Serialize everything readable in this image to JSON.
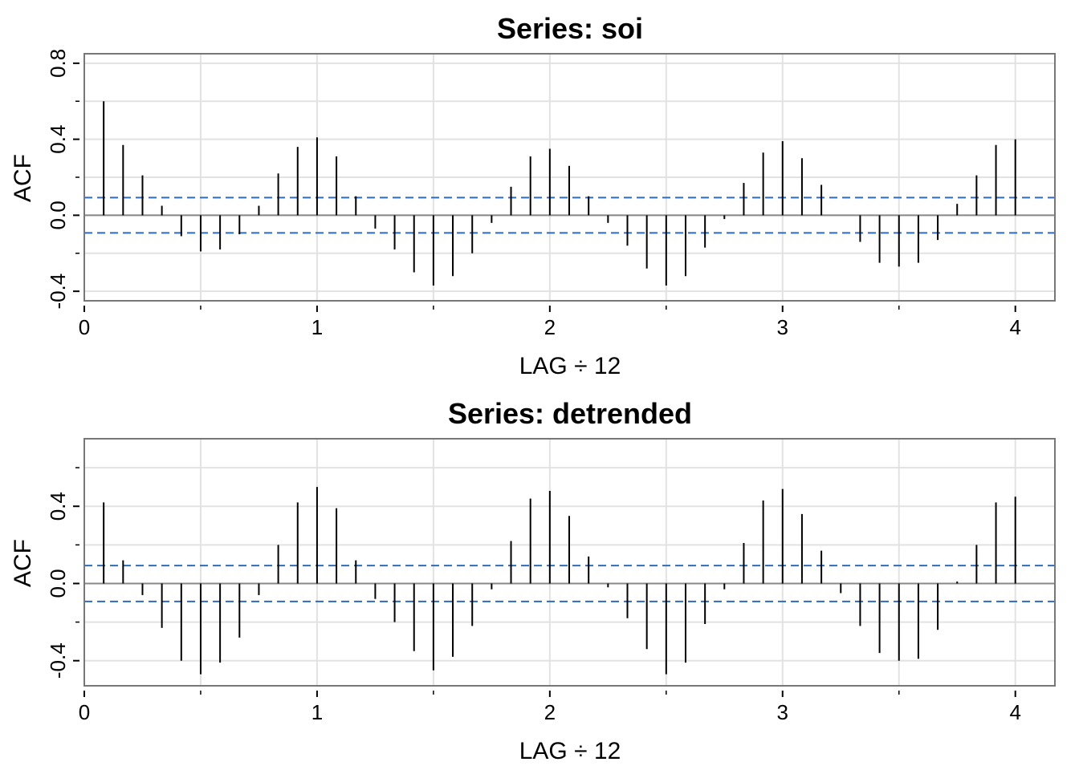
{
  "chart_data": [
    {
      "type": "bar",
      "title": "Series:  soi",
      "xlabel": "LAG ÷ 12",
      "ylabel": "ACF",
      "xlim": [
        0,
        4.17
      ],
      "ylim": [
        -0.45,
        0.85
      ],
      "x_ticks": [
        0,
        1,
        2,
        3,
        4
      ],
      "x_tick_labels": [
        "0",
        "1",
        "2",
        "3",
        "4"
      ],
      "y_ticks": [
        -0.4,
        0.0,
        0.4,
        0.8
      ],
      "y_tick_labels": [
        "-0.4",
        "0.0",
        "0.4",
        "0.8"
      ],
      "y_minor_ticks": [
        -0.2,
        0.2,
        0.6
      ],
      "grid": true,
      "confidence_band": 0.093,
      "colors": {
        "bars": "#000000",
        "confidence": "#2f6bc4",
        "grid": "#e2e2e2",
        "zero": "#888888"
      },
      "lags": [
        0.0833,
        0.1667,
        0.25,
        0.3333,
        0.4167,
        0.5,
        0.5833,
        0.6667,
        0.75,
        0.8333,
        0.9167,
        1.0,
        1.0833,
        1.1667,
        1.25,
        1.3333,
        1.4167,
        1.5,
        1.5833,
        1.6667,
        1.75,
        1.8333,
        1.9167,
        2.0,
        2.0833,
        2.1667,
        2.25,
        2.3333,
        2.4167,
        2.5,
        2.5833,
        2.6667,
        2.75,
        2.8333,
        2.9167,
        3.0,
        3.0833,
        3.1667,
        3.25,
        3.3333,
        3.4167,
        3.5,
        3.5833,
        3.6667,
        3.75,
        3.8333,
        3.9167,
        4.0
      ],
      "values": [
        0.6,
        0.37,
        0.21,
        0.05,
        -0.11,
        -0.19,
        -0.18,
        -0.1,
        0.05,
        0.22,
        0.36,
        0.41,
        0.31,
        0.1,
        -0.07,
        -0.18,
        -0.3,
        -0.37,
        -0.32,
        -0.2,
        -0.04,
        0.15,
        0.31,
        0.35,
        0.26,
        0.1,
        -0.04,
        -0.16,
        -0.28,
        -0.37,
        -0.32,
        -0.17,
        -0.02,
        0.17,
        0.33,
        0.39,
        0.3,
        0.16,
        0.0,
        -0.14,
        -0.25,
        -0.27,
        -0.25,
        -0.13,
        0.06,
        0.21,
        0.37,
        0.4
      ]
    },
    {
      "type": "bar",
      "title": "Series:  detrended",
      "xlabel": "LAG ÷ 12",
      "ylabel": "ACF",
      "xlim": [
        0,
        4.17
      ],
      "ylim": [
        -0.53,
        0.75
      ],
      "x_ticks": [
        0,
        1,
        2,
        3,
        4
      ],
      "x_tick_labels": [
        "0",
        "1",
        "2",
        "3",
        "4"
      ],
      "y_ticks": [
        -0.4,
        0.0,
        0.4
      ],
      "y_tick_labels": [
        "-0.4",
        "0.0",
        "0.4"
      ],
      "y_minor_ticks": [
        -0.2,
        0.2,
        0.6
      ],
      "grid": true,
      "confidence_band": 0.093,
      "colors": {
        "bars": "#000000",
        "confidence": "#2f6bc4",
        "grid": "#e2e2e2",
        "zero": "#888888"
      },
      "lags": [
        0.0833,
        0.1667,
        0.25,
        0.3333,
        0.4167,
        0.5,
        0.5833,
        0.6667,
        0.75,
        0.8333,
        0.9167,
        1.0,
        1.0833,
        1.1667,
        1.25,
        1.3333,
        1.4167,
        1.5,
        1.5833,
        1.6667,
        1.75,
        1.8333,
        1.9167,
        2.0,
        2.0833,
        2.1667,
        2.25,
        2.3333,
        2.4167,
        2.5,
        2.5833,
        2.6667,
        2.75,
        2.8333,
        2.9167,
        3.0,
        3.0833,
        3.1667,
        3.25,
        3.3333,
        3.4167,
        3.5,
        3.5833,
        3.6667,
        3.75,
        3.8333,
        3.9167,
        4.0
      ],
      "values": [
        0.42,
        0.12,
        -0.06,
        -0.23,
        -0.4,
        -0.47,
        -0.41,
        -0.28,
        -0.06,
        0.2,
        0.42,
        0.5,
        0.39,
        0.12,
        -0.08,
        -0.2,
        -0.35,
        -0.45,
        -0.38,
        -0.22,
        -0.03,
        0.22,
        0.44,
        0.48,
        0.35,
        0.14,
        -0.02,
        -0.18,
        -0.34,
        -0.47,
        -0.41,
        -0.21,
        -0.03,
        0.21,
        0.43,
        0.49,
        0.36,
        0.17,
        -0.05,
        -0.22,
        -0.36,
        -0.4,
        -0.39,
        -0.24,
        0.01,
        0.2,
        0.42,
        0.45
      ]
    }
  ]
}
